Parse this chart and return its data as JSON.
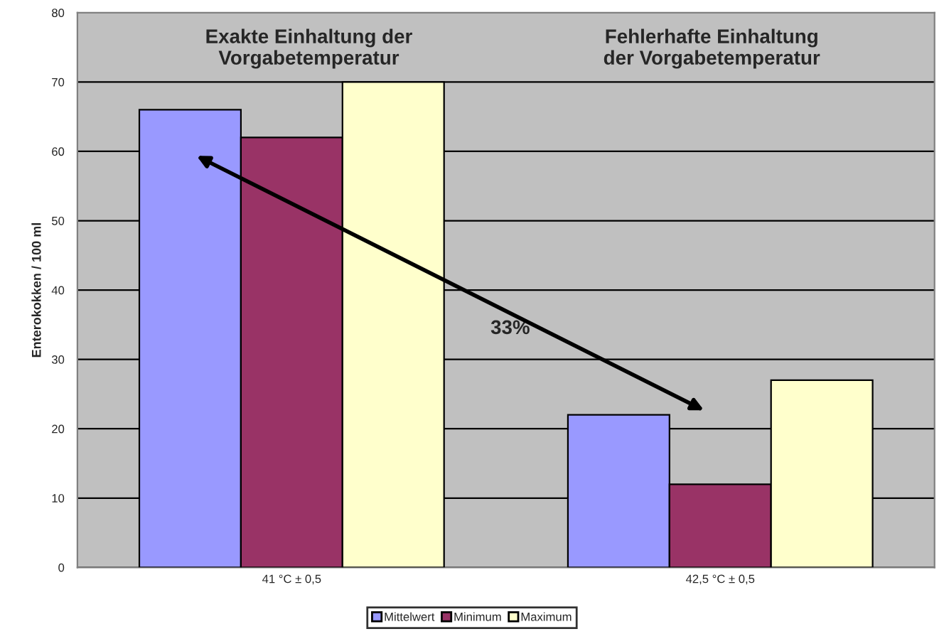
{
  "chart_data": {
    "type": "bar",
    "categories": [
      "41 °C ± 0,5",
      "42,5 °C ± 0,5"
    ],
    "series": [
      {
        "name": "Mittelwert",
        "color": "#9999ff",
        "values": [
          66,
          22
        ]
      },
      {
        "name": "Minimum",
        "color": "#993366",
        "values": [
          62,
          12
        ]
      },
      {
        "name": "Maximum",
        "color": "#ffffcc",
        "values": [
          70,
          27
        ]
      }
    ],
    "ylabel": "Enterokokken / 100 ml",
    "ylim": [
      0,
      80
    ],
    "yticks": [
      0,
      10,
      20,
      30,
      40,
      50,
      60,
      70,
      80
    ],
    "grid": "y",
    "legend": "bottom",
    "annotations": [
      "Exakte Einhaltung der\nVorgabetemperatur",
      "Fehlerhafte Einhaltung\nder Vorgabetemperatur",
      "33%"
    ]
  }
}
